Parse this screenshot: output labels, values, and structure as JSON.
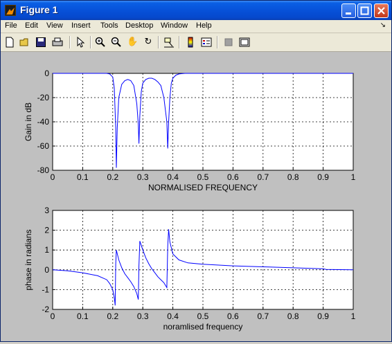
{
  "window": {
    "title": "Figure 1"
  },
  "menu": [
    "File",
    "Edit",
    "View",
    "Insert",
    "Tools",
    "Desktop",
    "Window",
    "Help"
  ],
  "toolbar_icons": [
    "new-figure-icon",
    "open-file-icon",
    "save-icon",
    "print-icon",
    "edit-plot-arrow-icon",
    "zoom-in-icon",
    "zoom-out-icon",
    "pan-hand-icon",
    "rotate-3d-icon",
    "data-cursor-icon",
    "colorbar-icon",
    "legend-icon",
    "hide-plot-tools-icon",
    "show-plot-tools-icon"
  ],
  "chart_data": [
    {
      "type": "line",
      "xlabel": "NORMALISED FREQUENCY",
      "ylabel": "Gain in dB",
      "xlim": [
        0,
        1
      ],
      "ylim": [
        -80,
        0
      ],
      "grid": true,
      "xticks": [
        "0",
        "0.1",
        "0.2",
        "0.3",
        "0.4",
        "0.5",
        "0.6",
        "0.7",
        "0.8",
        "0.9",
        "1"
      ],
      "yticks": [
        "0",
        "-20",
        "-40",
        "-60",
        "-80"
      ],
      "series": [
        {
          "color": "#0000ff",
          "x": [
            0,
            0.18,
            0.19,
            0.2,
            0.205,
            0.21,
            0.212,
            0.215,
            0.22,
            0.23,
            0.24,
            0.25,
            0.26,
            0.27,
            0.28,
            0.285,
            0.287,
            0.29,
            0.295,
            0.3,
            0.31,
            0.32,
            0.33,
            0.34,
            0.35,
            0.36,
            0.37,
            0.38,
            0.383,
            0.386,
            0.39,
            0.395,
            0.4,
            0.41,
            0.42,
            0.43,
            0.44,
            1
          ],
          "y": [
            0,
            0,
            -0.5,
            -3,
            -12,
            -45,
            -78,
            -45,
            -20,
            -9,
            -6,
            -5,
            -6,
            -10,
            -25,
            -42,
            -58,
            -35,
            -15,
            -8,
            -5,
            -4,
            -4,
            -5,
            -7,
            -10,
            -20,
            -40,
            -62,
            -40,
            -20,
            -8,
            -4,
            -1.5,
            -0.5,
            -0.2,
            0,
            0
          ]
        }
      ]
    },
    {
      "type": "line",
      "xlabel": "noramlised frequency",
      "ylabel": "phase in radians",
      "xlim": [
        0,
        1
      ],
      "ylim": [
        -2,
        3
      ],
      "grid": true,
      "xticks": [
        "0",
        "0.1",
        "0.2",
        "0.3",
        "0.4",
        "0.5",
        "0.6",
        "0.7",
        "0.8",
        "0.9",
        "1"
      ],
      "yticks": [
        "3",
        "2",
        "1",
        "0",
        "-1",
        "-2"
      ],
      "series": [
        {
          "color": "#0000ff",
          "x": [
            0,
            0.05,
            0.1,
            0.15,
            0.18,
            0.19,
            0.2,
            0.205,
            0.208,
            0.21,
            0.212,
            0.22,
            0.23,
            0.24,
            0.25,
            0.26,
            0.27,
            0.28,
            0.285,
            0.287,
            0.29,
            0.3,
            0.31,
            0.32,
            0.33,
            0.34,
            0.35,
            0.36,
            0.37,
            0.38,
            0.383,
            0.386,
            0.39,
            0.4,
            0.42,
            0.45,
            0.5,
            0.6,
            0.7,
            0.8,
            0.9,
            0.91,
            1
          ],
          "y": [
            0,
            -0.05,
            -0.15,
            -0.3,
            -0.5,
            -0.7,
            -1.0,
            -1.4,
            -1.8,
            0.3,
            1.0,
            0.5,
            0.1,
            -0.2,
            -0.4,
            -0.6,
            -0.85,
            -1.2,
            -1.5,
            0.2,
            1.45,
            1.0,
            0.6,
            0.3,
            0.05,
            -0.15,
            -0.35,
            -0.5,
            -0.65,
            -0.9,
            1.2,
            2.05,
            1.4,
            0.8,
            0.5,
            0.35,
            0.28,
            0.2,
            0.15,
            0.1,
            0.05,
            0.02,
            0
          ]
        }
      ]
    }
  ]
}
